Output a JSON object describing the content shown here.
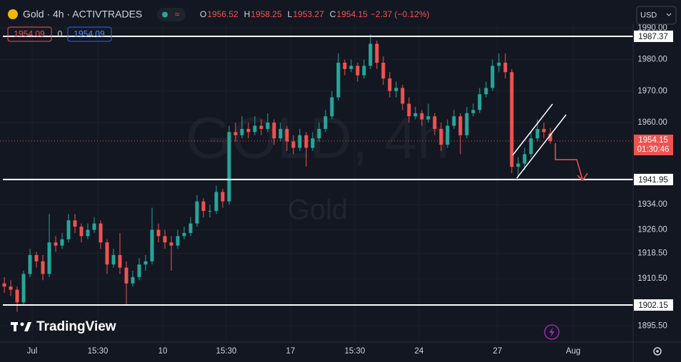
{
  "ui": {
    "symbol": "Gold · 4h · ACTIVTRADES",
    "ohlc": [
      [
        "O",
        "1956.52"
      ],
      [
        "H",
        "1958.25"
      ],
      [
        "L",
        "1953.27"
      ],
      [
        "C",
        "1954.15"
      ]
    ],
    "change": "−2.37 (−0.12%)",
    "sell": "1954.09",
    "spread": "0",
    "buy": "1954.09",
    "currency": "USD",
    "watermark": "GOLD, 4h",
    "watermark_name": "Gold",
    "brand": "TradingView",
    "countdown": "01:30:46"
  },
  "chart_data": {
    "type": "candlestick",
    "up_color": "#26a69a",
    "down_color": "#ef5350",
    "candles": [
      [
        1909,
        1911,
        1906,
        1908
      ],
      [
        1908,
        1910,
        1905,
        1907
      ],
      [
        1907,
        1908,
        1900,
        1903
      ],
      [
        1903,
        1913,
        1902,
        1912
      ],
      [
        1912,
        1920,
        1911,
        1918
      ],
      [
        1918,
        1919,
        1914,
        1916
      ],
      [
        1916,
        1918,
        1910,
        1912
      ],
      [
        1912,
        1931,
        1911,
        1922
      ],
      [
        1922,
        1924,
        1919,
        1921
      ],
      [
        1921,
        1925,
        1920,
        1923
      ],
      [
        1923,
        1931,
        1922,
        1929
      ],
      [
        1929,
        1931,
        1925,
        1927
      ],
      [
        1927,
        1928,
        1922,
        1924
      ],
      [
        1924,
        1928,
        1923,
        1926
      ],
      [
        1926,
        1930,
        1925,
        1928
      ],
      [
        1928,
        1929,
        1920,
        1922
      ],
      [
        1922,
        1923,
        1912,
        1915
      ],
      [
        1915,
        1920,
        1914,
        1918
      ],
      [
        1918,
        1925,
        1912,
        1914
      ],
      [
        1914,
        1916,
        1902,
        1909
      ],
      [
        1909,
        1913,
        1908,
        1911
      ],
      [
        1911,
        1917,
        1910,
        1915
      ],
      [
        1915,
        1918,
        1913,
        1916
      ],
      [
        1916,
        1933,
        1915,
        1926
      ],
      [
        1926,
        1928,
        1922,
        1924
      ],
      [
        1924,
        1926,
        1920,
        1922
      ],
      [
        1922,
        1924,
        1913,
        1921
      ],
      [
        1921,
        1926,
        1920,
        1924
      ],
      [
        1924,
        1927,
        1923,
        1925
      ],
      [
        1925,
        1930,
        1924,
        1928
      ],
      [
        1928,
        1937,
        1927,
        1935
      ],
      [
        1935,
        1936,
        1930,
        1932
      ],
      [
        1932,
        1934,
        1930,
        1932
      ],
      [
        1932,
        1940,
        1931,
        1938
      ],
      [
        1938,
        1939,
        1933,
        1935
      ],
      [
        1935,
        1959,
        1934,
        1957
      ],
      [
        1957,
        1960,
        1954,
        1956
      ],
      [
        1956,
        1962,
        1955,
        1958
      ],
      [
        1958,
        1960,
        1955,
        1957
      ],
      [
        1957,
        1962,
        1956,
        1959
      ],
      [
        1959,
        1961,
        1956,
        1958
      ],
      [
        1958,
        1963,
        1957,
        1960
      ],
      [
        1960,
        1961,
        1953,
        1955
      ],
      [
        1955,
        1960,
        1954,
        1958
      ],
      [
        1958,
        1959,
        1951,
        1954
      ],
      [
        1954,
        1956,
        1950,
        1952
      ],
      [
        1952,
        1958,
        1951,
        1956
      ],
      [
        1956,
        1957,
        1946,
        1952
      ],
      [
        1952,
        1957,
        1951,
        1955
      ],
      [
        1955,
        1960,
        1954,
        1958
      ],
      [
        1958,
        1964,
        1957,
        1962
      ],
      [
        1962,
        1970,
        1961,
        1968
      ],
      [
        1968,
        1982,
        1967,
        1979
      ],
      [
        1979,
        1980,
        1975,
        1977
      ],
      [
        1977,
        1980,
        1976,
        1978
      ],
      [
        1978,
        1979,
        1973,
        1975
      ],
      [
        1975,
        1980,
        1974,
        1978
      ],
      [
        1978,
        1988,
        1977,
        1985
      ],
      [
        1985,
        1986,
        1977,
        1979
      ],
      [
        1979,
        1981,
        1972,
        1974
      ],
      [
        1974,
        1976,
        1968,
        1970
      ],
      [
        1970,
        1973,
        1968,
        1971
      ],
      [
        1971,
        1972,
        1964,
        1966
      ],
      [
        1966,
        1968,
        1960,
        1962
      ],
      [
        1962,
        1965,
        1961,
        1963
      ],
      [
        1963,
        1964,
        1959,
        1961
      ],
      [
        1961,
        1966,
        1960,
        1962
      ],
      [
        1962,
        1963,
        1956,
        1958
      ],
      [
        1958,
        1960,
        1951,
        1953
      ],
      [
        1953,
        1961,
        1952,
        1959
      ],
      [
        1959,
        1964,
        1958,
        1962
      ],
      [
        1962,
        1963,
        1950,
        1956
      ],
      [
        1956,
        1965,
        1955,
        1963
      ],
      [
        1963,
        1966,
        1962,
        1964
      ],
      [
        1964,
        1971,
        1963,
        1969
      ],
      [
        1969,
        1973,
        1968,
        1971
      ],
      [
        1971,
        1980,
        1970,
        1978
      ],
      [
        1978,
        1982,
        1976,
        1979
      ],
      [
        1979,
        1982,
        1974,
        1976
      ],
      [
        1976,
        1977,
        1944,
        1946
      ],
      [
        1946,
        1949,
        1943,
        1947
      ],
      [
        1947,
        1952,
        1945,
        1950
      ],
      [
        1950,
        1957,
        1949,
        1955
      ],
      [
        1955,
        1961,
        1954,
        1958
      ],
      [
        1958,
        1960,
        1955,
        1957
      ],
      [
        1956.52,
        1958.25,
        1953.27,
        1954.15
      ]
    ],
    "xlim": [
      -0.67,
      97.9
    ],
    "ylim": [
      1890.4,
      1991.2
    ],
    "xticks": [
      {
        "value": 4.33,
        "label": "Jul"
      },
      {
        "value": 14.56,
        "label": "15:30"
      },
      {
        "value": 24.67,
        "label": "10"
      },
      {
        "value": 34.56,
        "label": "15:30"
      },
      {
        "value": 44.56,
        "label": "17"
      },
      {
        "value": 54.56,
        "label": "15:30"
      },
      {
        "value": 64.56,
        "label": "24"
      },
      {
        "value": 76.78,
        "label": "27"
      },
      {
        "value": 88.56,
        "label": "Aug"
      }
    ],
    "yticks": [
      {
        "value": 1990,
        "label": "1990.00"
      },
      {
        "value": 1980,
        "label": "1980.00"
      },
      {
        "value": 1970,
        "label": "1970.00"
      },
      {
        "value": 1960,
        "label": "1960.00"
      },
      {
        "value": 1934,
        "label": "1934.00"
      },
      {
        "value": 1926,
        "label": "1926.00"
      },
      {
        "value": 1918.5,
        "label": "1918.50"
      },
      {
        "value": 1910.5,
        "label": "1910.50"
      },
      {
        "value": 1895.5,
        "label": "1895.50"
      }
    ],
    "levels": [
      1987.37,
      1941.95,
      1902.15
    ],
    "grid": true
  }
}
